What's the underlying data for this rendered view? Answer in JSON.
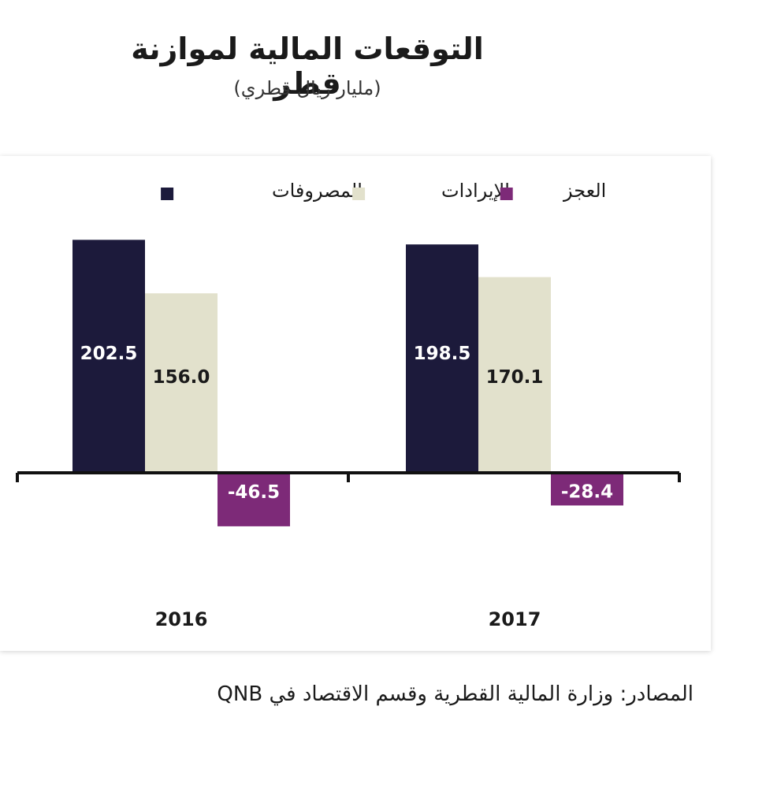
{
  "chart_data": {
    "type": "bar",
    "title": "التوقعات المالية لموازنة قطر",
    "subtitle": "(مليار ريال قطري)",
    "categories": [
      "2016",
      "2017"
    ],
    "series": [
      {
        "name": "المصروفات",
        "values": [
          202.5,
          198.5
        ],
        "labels": [
          "202.5",
          "198.5"
        ],
        "color": "#1c1a3b"
      },
      {
        "name": "الإيرادات",
        "values": [
          156.0,
          170.1
        ],
        "labels": [
          "156.0",
          "170.1"
        ],
        "color": "#e2e1cc"
      },
      {
        "name": "العجز",
        "values": [
          -46.5,
          -28.4
        ],
        "labels": [
          "-46.5",
          "-28.4"
        ],
        "color": "#7d2a78"
      }
    ],
    "legend_position": "top",
    "ylim": [
      -150,
      210
    ],
    "grid": false,
    "xlabel": "",
    "ylabel": ""
  },
  "source": "المصادر: وزارة المالية القطرية وقسم الاقتصاد في QNB"
}
